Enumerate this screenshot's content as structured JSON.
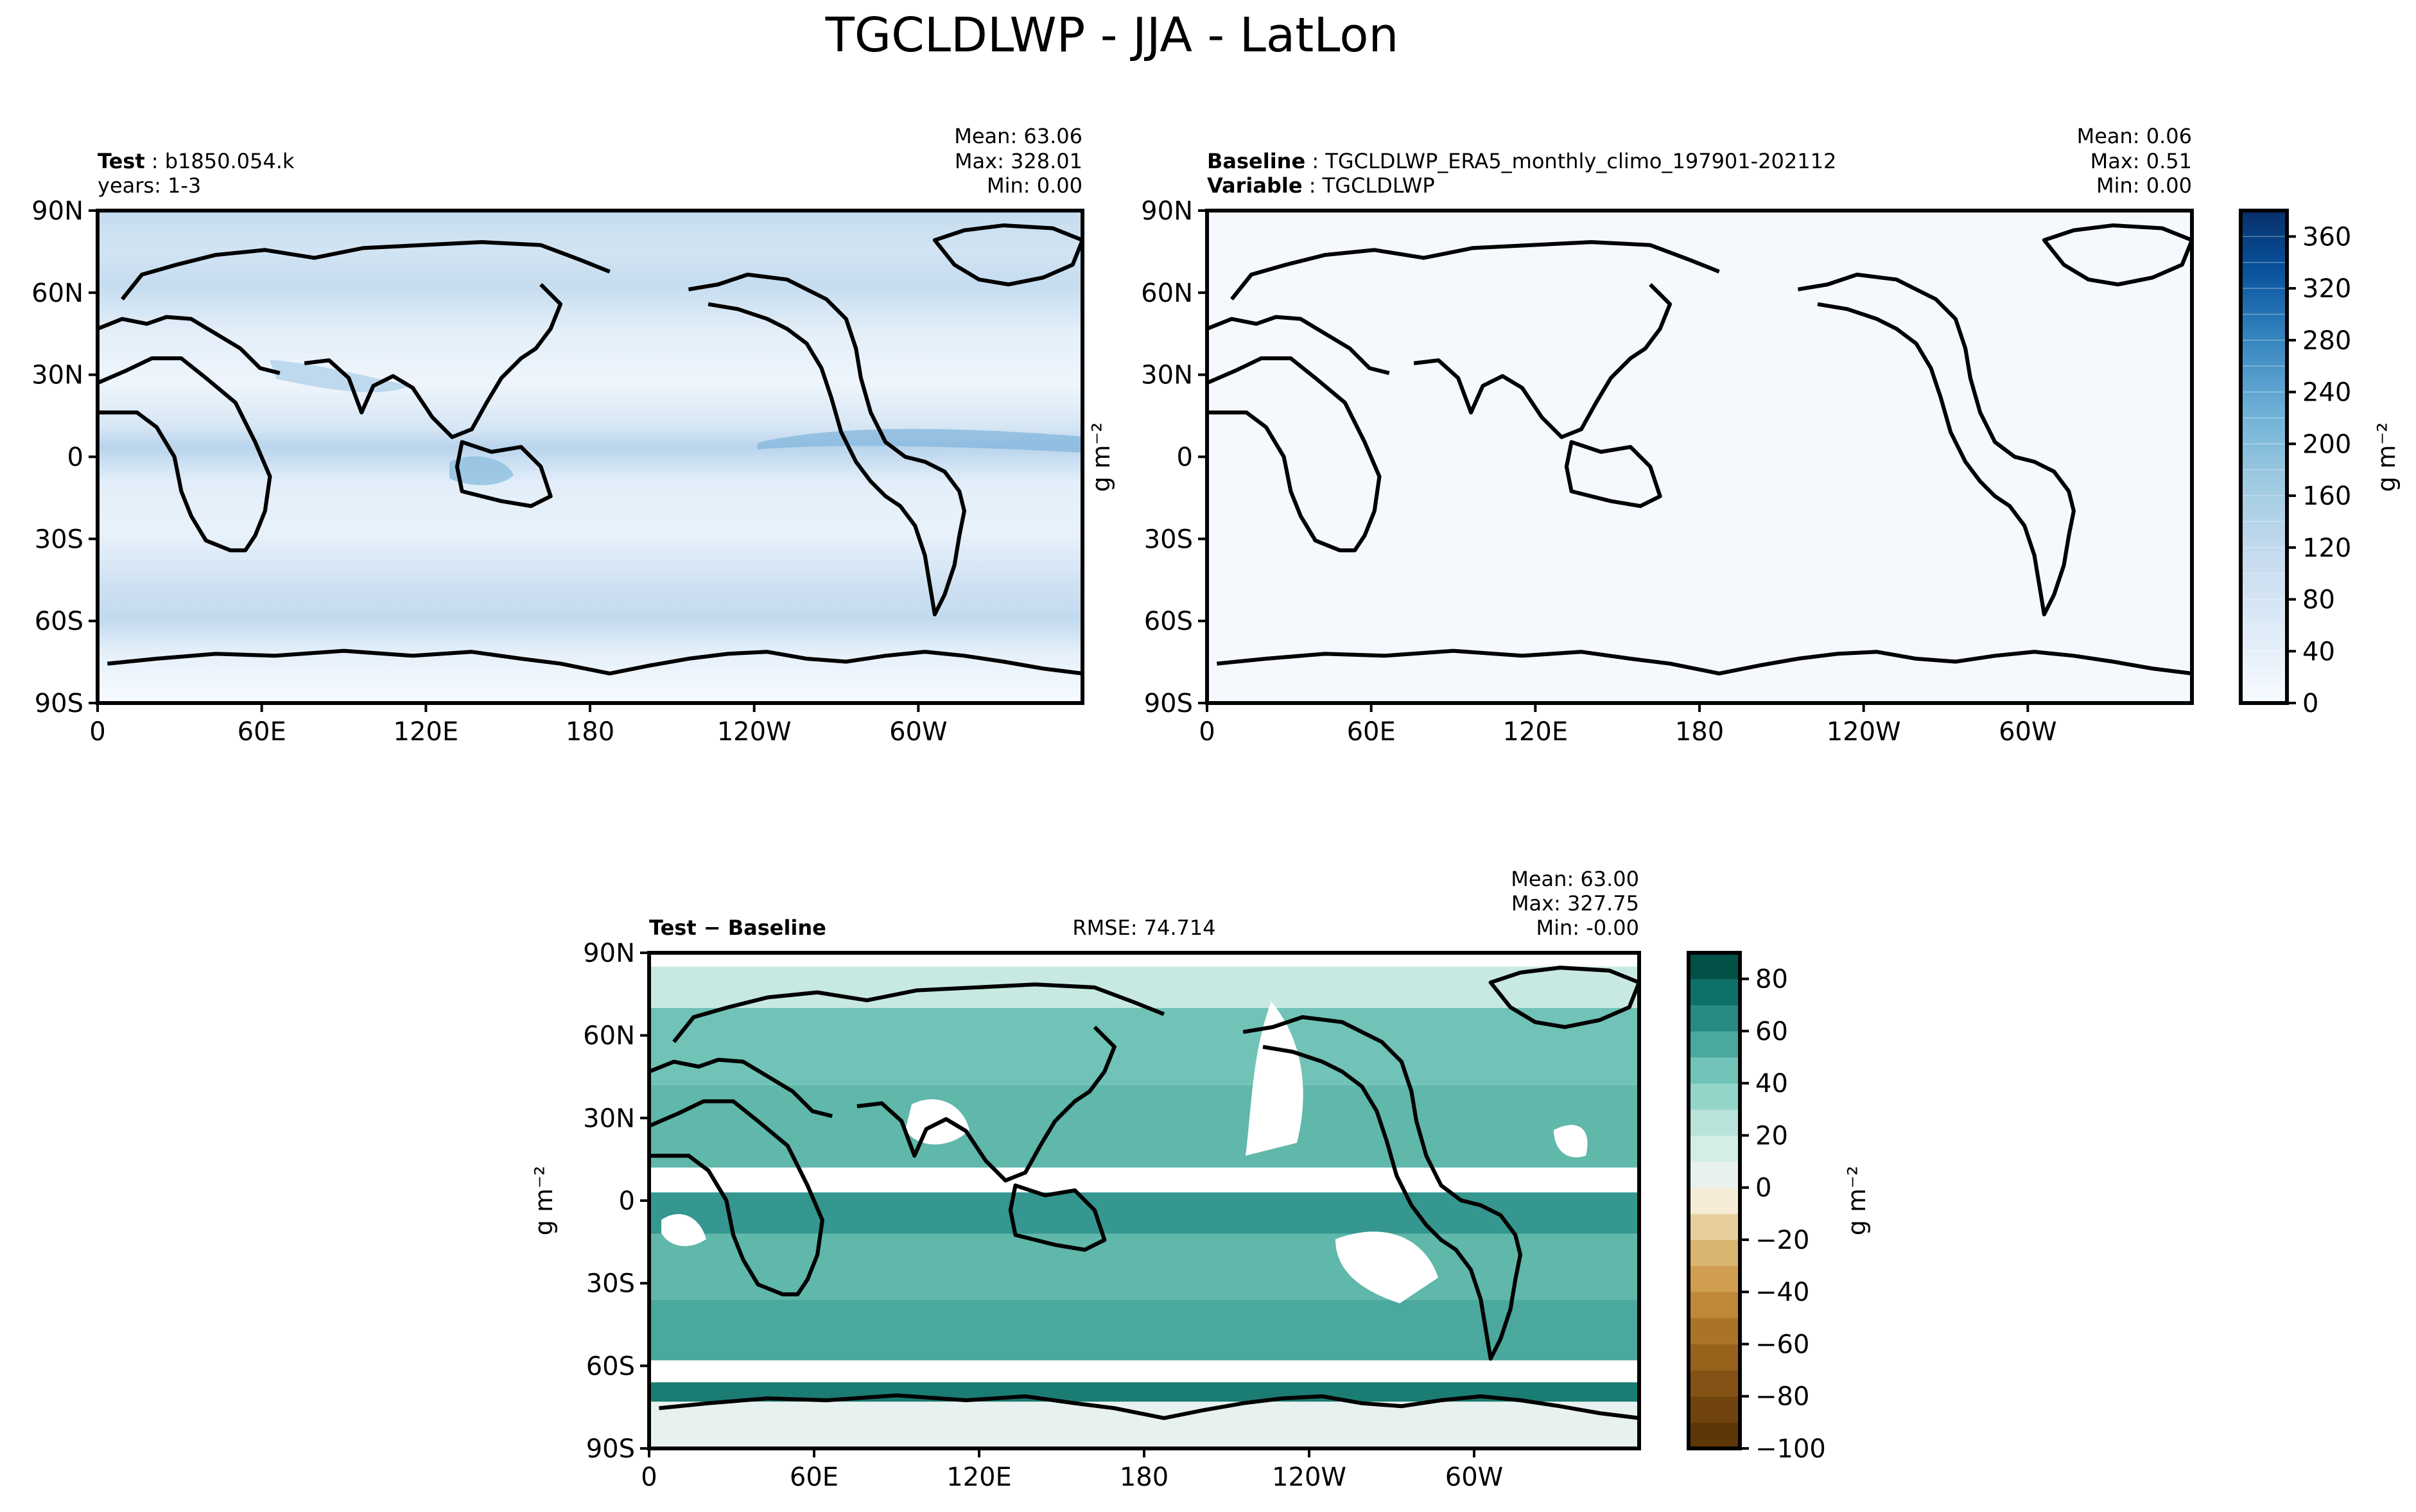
{
  "figure_title": "TGCLDLWP - JJA - LatLon",
  "colors": {
    "seq_low": "#f7fbff",
    "seq_high": "#08306b",
    "div_low": "#543005",
    "div_mid": "#f5f5f5",
    "div_high": "#003c30",
    "land_diff": "#e7f1ef"
  },
  "axis_ticks": {
    "lon": [
      "0",
      "60E",
      "120E",
      "180",
      "120W",
      "60W"
    ],
    "lat": [
      "90N",
      "60N",
      "30N",
      "0",
      "30S",
      "60S",
      "90S"
    ]
  },
  "panels": [
    {
      "id": "test",
      "label": "Test",
      "value": "b1850.054.k",
      "line2": "years: 1-3",
      "stats": {
        "mean": "Mean: 63.06",
        "max": "Max: 328.01",
        "min": "Min:  0.00"
      }
    },
    {
      "id": "baseline",
      "label": "Baseline",
      "value": "TGCLDLWP_ERA5_monthly_climo_197901-202112",
      "label2": "Variable",
      "value2": "TGCLDLWP",
      "stats": {
        "mean": "Mean:  0.06",
        "max": "Max:  0.51",
        "min": "Min:  0.00"
      },
      "ylabel": "g m⁻²"
    },
    {
      "id": "diff",
      "label": "Test − Baseline",
      "rmse": "RMSE: 74.714",
      "stats": {
        "mean": "Mean: 63.00",
        "max": "Max: 327.75",
        "min": "Min: -0.00"
      },
      "ylabel": "g m⁻²"
    }
  ],
  "colorbars": [
    {
      "id": "seq",
      "ticks": [
        "0",
        "40",
        "80",
        "120",
        "160",
        "200",
        "240",
        "280",
        "320",
        "360"
      ],
      "label": "g m⁻²"
    },
    {
      "id": "div",
      "ticks": [
        "−100",
        "−80",
        "−60",
        "−40",
        "−20",
        "0",
        "20",
        "40",
        "60",
        "80"
      ],
      "label": "g m⁻²"
    }
  ],
  "chart_data": [
    {
      "type": "heatmap",
      "title": "Test: b1850.054.k",
      "x_ticks": [
        "0",
        "60E",
        "120E",
        "180",
        "120W",
        "60W"
      ],
      "y_ticks": [
        "90N",
        "60N",
        "30N",
        "0",
        "30S",
        "60S",
        "90S"
      ],
      "xlim": [
        0,
        360
      ],
      "ylim": [
        -90,
        90
      ],
      "units": "g m⁻²",
      "mean": 63.06,
      "max": 328.01,
      "min": 0.0,
      "bands": [
        {
          "lat": 80,
          "value": 80
        },
        {
          "lat": 60,
          "value": 95
        },
        {
          "lat": 45,
          "value": 75
        },
        {
          "lat": 30,
          "value": 45
        },
        {
          "lat": 15,
          "value": 70
        },
        {
          "lat": 5,
          "value": 110
        },
        {
          "lat": -10,
          "value": 45
        },
        {
          "lat": -25,
          "value": 35
        },
        {
          "lat": -45,
          "value": 90
        },
        {
          "lat": -60,
          "value": 110
        },
        {
          "lat": -70,
          "value": 40
        },
        {
          "lat": -85,
          "value": 5
        }
      ],
      "colorbar_range": [
        0,
        380
      ]
    },
    {
      "type": "heatmap",
      "title": "Baseline: TGCLDLWP_ERA5_monthly_climo_197901-202112",
      "x_ticks": [
        "0",
        "60E",
        "120E",
        "180",
        "120W",
        "60W"
      ],
      "y_ticks": [
        "90N",
        "60N",
        "30N",
        "0",
        "30S",
        "60S",
        "90S"
      ],
      "xlim": [
        0,
        360
      ],
      "ylim": [
        -90,
        90
      ],
      "units": "g m⁻²",
      "mean": 0.06,
      "max": 0.51,
      "min": 0.0,
      "colorbar_range": [
        0,
        380
      ]
    },
    {
      "type": "heatmap",
      "title": "Test − Baseline",
      "x_ticks": [
        "0",
        "60E",
        "120E",
        "180",
        "120W",
        "60W"
      ],
      "y_ticks": [
        "90N",
        "60N",
        "30N",
        "0",
        "30S",
        "60S",
        "90S"
      ],
      "xlim": [
        0,
        360
      ],
      "ylim": [
        -90,
        90
      ],
      "units": "g m⁻²",
      "mean": 63.0,
      "max": 327.75,
      "min": -0.0,
      "rmse": 74.714,
      "levels": [
        -100,
        -90,
        -80,
        -70,
        -60,
        -50,
        -40,
        -30,
        -20,
        -10,
        0,
        10,
        20,
        30,
        40,
        50,
        60,
        70,
        80,
        90
      ],
      "regions": [
        {
          "lon": [
            0,
            360
          ],
          "lat": [
            -90,
            -73
          ],
          "value": 5
        },
        {
          "lon": [
            0,
            360
          ],
          "lat": [
            -73,
            -66
          ],
          "value": 70
        },
        {
          "lon": [
            0,
            360
          ],
          "lat": [
            -58,
            -36
          ],
          "value": 55
        },
        {
          "lon": [
            0,
            360
          ],
          "lat": [
            -36,
            -12
          ],
          "value": 50
        },
        {
          "lon": [
            0,
            360
          ],
          "lat": [
            -12,
            3
          ],
          "value": 60
        },
        {
          "lon": [
            0,
            360
          ],
          "lat": [
            3,
            12
          ],
          "value": 0
        },
        {
          "lon": [
            0,
            360
          ],
          "lat": [
            12,
            42
          ],
          "value": 50
        },
        {
          "lon": [
            0,
            360
          ],
          "lat": [
            42,
            70
          ],
          "value": 45
        },
        {
          "lon": [
            0,
            360
          ],
          "lat": [
            70,
            85
          ],
          "value": 20
        }
      ]
    }
  ]
}
